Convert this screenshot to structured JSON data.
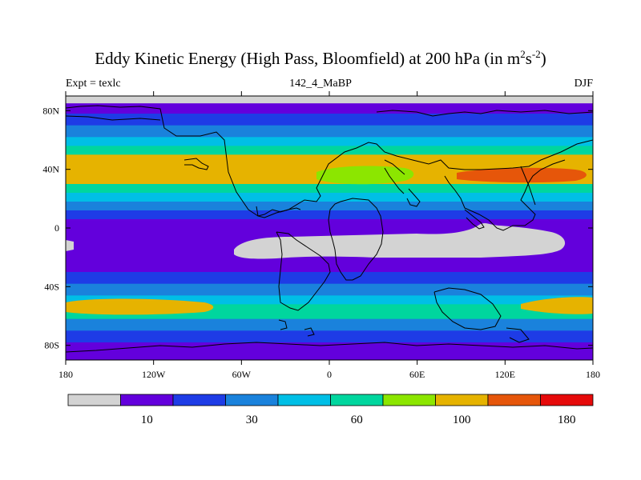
{
  "title": {
    "main": "Eddy Kinetic Energy (High Pass, Bloomfield) at 200 hPa (in m",
    "sup1": "2",
    "mid": "s",
    "sup2": "-2",
    "end": ")"
  },
  "subtitle": {
    "left": "Expt = texlc",
    "center": "142_4_MaBP",
    "right": "DJF"
  },
  "map": {
    "lon_range": [
      -180,
      180
    ],
    "lat_range": [
      -90,
      90
    ],
    "x_ticks": [
      {
        "lon": -180,
        "label": "180"
      },
      {
        "lon": -120,
        "label": "120W"
      },
      {
        "lon": -60,
        "label": "60W"
      },
      {
        "lon": 0,
        "label": "0"
      },
      {
        "lon": 60,
        "label": "60E"
      },
      {
        "lon": 120,
        "label": "120E"
      },
      {
        "lon": 180,
        "label": "180"
      }
    ],
    "y_ticks": [
      {
        "lat": 80,
        "label": "80N"
      },
      {
        "lat": 40,
        "label": "40N"
      },
      {
        "lat": 0,
        "label": "0"
      },
      {
        "lat": -40,
        "label": "40S"
      },
      {
        "lat": -80,
        "label": "80S"
      }
    ],
    "fill_bands": [
      {
        "lat_top": 90,
        "lat_bottom": 85,
        "level": 0
      },
      {
        "lat_top": 85,
        "lat_bottom": 78,
        "level": 1
      },
      {
        "lat_top": 78,
        "lat_bottom": 70,
        "level": 2
      },
      {
        "lat_top": 70,
        "lat_bottom": 62,
        "level": 3
      },
      {
        "lat_top": 62,
        "lat_bottom": 56,
        "level": 4
      },
      {
        "lat_top": 56,
        "lat_bottom": 50,
        "level": 5
      },
      {
        "lat_top": 50,
        "lat_bottom": 30,
        "level": 7
      },
      {
        "lat_top": 30,
        "lat_bottom": 24,
        "level": 5
      },
      {
        "lat_top": 24,
        "lat_bottom": 18,
        "level": 4
      },
      {
        "lat_top": 18,
        "lat_bottom": 12,
        "level": 3
      },
      {
        "lat_top": 12,
        "lat_bottom": 6,
        "level": 2
      },
      {
        "lat_top": 6,
        "lat_bottom": -30,
        "level": 1
      },
      {
        "lat_top": -30,
        "lat_bottom": -38,
        "level": 2
      },
      {
        "lat_top": -38,
        "lat_bottom": -46,
        "level": 3
      },
      {
        "lat_top": -46,
        "lat_bottom": -52,
        "level": 4
      },
      {
        "lat_top": -52,
        "lat_bottom": -62,
        "level": 5
      },
      {
        "lat_top": -62,
        "lat_bottom": -70,
        "level": 3
      },
      {
        "lat_top": -70,
        "lat_bottom": -78,
        "level": 2
      },
      {
        "lat_top": -78,
        "lat_bottom": -90,
        "level": 1
      }
    ]
  },
  "colorbar": {
    "colors": [
      "#d3d3d3",
      "#6300dc",
      "#1e3ce6",
      "#1a82dc",
      "#00bfe6",
      "#00d69e",
      "#8ce600",
      "#e6b300",
      "#e6560a",
      "#e60a0a"
    ],
    "labels": [
      {
        "after_box": 1,
        "text": "10"
      },
      {
        "after_box": 3,
        "text": "30"
      },
      {
        "after_box": 5,
        "text": "60"
      },
      {
        "after_box": 7,
        "text": "100"
      },
      {
        "after_box": 9,
        "text": "180"
      }
    ]
  }
}
